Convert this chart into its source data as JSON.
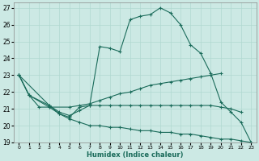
{
  "xlabel": "Humidex (Indice chaleur)",
  "xlim": [
    -0.5,
    23.5
  ],
  "ylim": [
    19,
    27.3
  ],
  "yticks": [
    19,
    20,
    21,
    22,
    23,
    24,
    25,
    26,
    27
  ],
  "xticks": [
    0,
    1,
    2,
    3,
    4,
    5,
    6,
    7,
    8,
    9,
    10,
    11,
    12,
    13,
    14,
    15,
    16,
    17,
    18,
    19,
    20,
    21,
    22,
    23
  ],
  "bg_color": "#cce9e4",
  "line_color": "#1a6b5a",
  "grid_color": "#b0d8d0",
  "curves": [
    {
      "x": [
        0,
        1,
        2,
        3,
        4,
        5,
        6,
        7,
        8,
        9,
        10,
        11,
        12,
        13,
        14,
        15,
        16,
        17,
        18,
        19,
        20,
        21,
        22,
        23
      ],
      "y": [
        23.0,
        21.8,
        21.1,
        21.1,
        20.7,
        20.5,
        21.1,
        21.2,
        24.7,
        24.6,
        24.4,
        26.3,
        26.5,
        26.6,
        27.0,
        26.7,
        26.0,
        24.8,
        24.3,
        23.1,
        21.4,
        20.8,
        20.2,
        19.0
      ]
    },
    {
      "x": [
        0,
        1,
        3,
        5,
        6,
        7,
        8,
        9,
        10,
        11,
        12,
        13,
        14,
        15,
        16,
        17,
        18,
        19,
        20
      ],
      "y": [
        23.0,
        21.8,
        21.1,
        21.1,
        21.2,
        21.3,
        21.5,
        21.7,
        21.9,
        22.0,
        22.2,
        22.4,
        22.5,
        22.6,
        22.7,
        22.8,
        22.9,
        23.0,
        23.1
      ]
    },
    {
      "x": [
        0,
        1,
        3,
        4,
        5,
        6,
        7,
        8,
        9,
        10,
        11,
        12,
        13,
        14,
        15,
        16,
        17,
        18,
        19,
        20,
        21,
        22
      ],
      "y": [
        23.0,
        21.8,
        21.2,
        20.8,
        20.6,
        20.9,
        21.2,
        21.2,
        21.2,
        21.2,
        21.2,
        21.2,
        21.2,
        21.2,
        21.2,
        21.2,
        21.2,
        21.2,
        21.2,
        21.1,
        21.0,
        20.8
      ]
    },
    {
      "x": [
        0,
        3,
        4,
        5,
        6,
        7,
        8,
        9,
        10,
        11,
        12,
        13,
        14,
        15,
        16,
        17,
        18,
        19,
        20,
        21,
        22,
        23
      ],
      "y": [
        23.0,
        21.2,
        20.7,
        20.4,
        20.2,
        20.0,
        20.0,
        19.9,
        19.9,
        19.8,
        19.7,
        19.7,
        19.6,
        19.6,
        19.5,
        19.5,
        19.4,
        19.3,
        19.2,
        19.2,
        19.1,
        19.0
      ]
    }
  ]
}
